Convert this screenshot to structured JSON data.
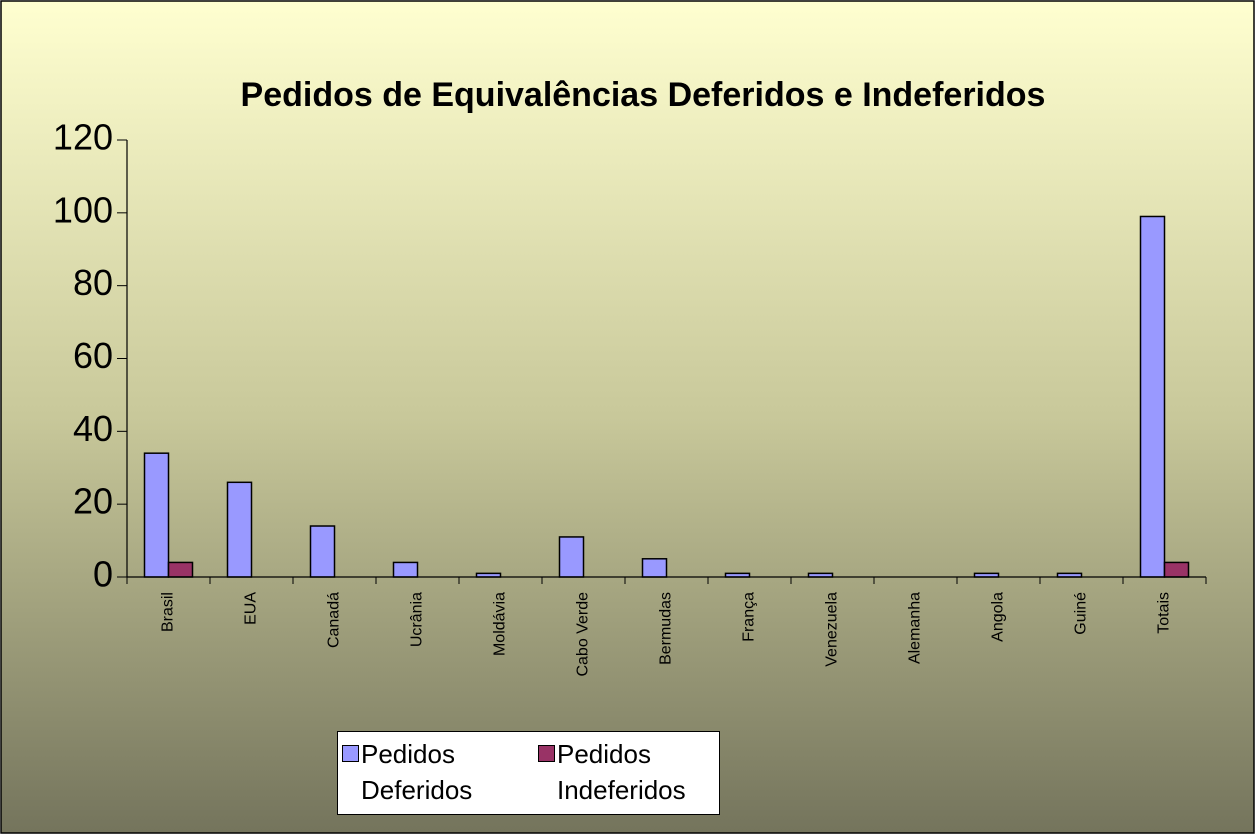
{
  "chart_data": {
    "type": "bar",
    "title": "Pedidos de Equivalências Deferidos e Indeferidos",
    "categories": [
      "Brasil",
      "EUA",
      "Canadá",
      "Ucrânia",
      "Moldávia",
      "Cabo Verde",
      "Bermudas",
      "França",
      "Venezuela",
      "Alemanha",
      "Angola",
      "Guiné",
      "Totais"
    ],
    "series": [
      {
        "name": "Pedidos Deferidos",
        "color": "#9999ff",
        "values": [
          34,
          26,
          14,
          4,
          1,
          11,
          5,
          1,
          1,
          0,
          1,
          1,
          99
        ]
      },
      {
        "name": "Pedidos Indeferidos",
        "color": "#993366",
        "values": [
          4,
          0,
          0,
          0,
          0,
          0,
          0,
          0,
          0,
          0,
          0,
          0,
          4
        ]
      }
    ],
    "ylim": [
      0,
      120
    ],
    "yticks": [
      0,
      20,
      40,
      60,
      80,
      100,
      120
    ],
    "legend": "bottom"
  }
}
